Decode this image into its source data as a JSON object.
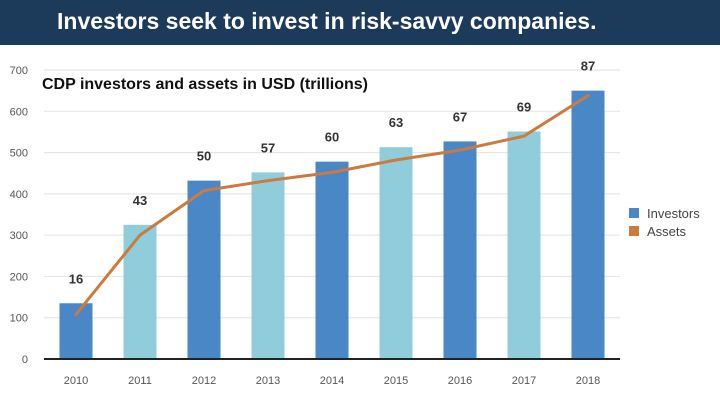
{
  "header": {
    "title": "Investors seek to invest in risk-savvy companies."
  },
  "chart_data": {
    "type": "bar",
    "title": "CDP investors and assets in USD (trillions)",
    "categories": [
      "2010",
      "2011",
      "2012",
      "2013",
      "2014",
      "2015",
      "2016",
      "2017",
      "2018"
    ],
    "yticks": [
      "0",
      "100",
      "200",
      "300",
      "400",
      "500",
      "600",
      "700"
    ],
    "ylim": [
      0,
      700
    ],
    "grid": true,
    "legend_position": "right",
    "series": [
      {
        "name": "Investors",
        "type": "bar",
        "values": [
          135,
          325,
          432,
          452,
          478,
          513,
          527,
          551,
          650
        ],
        "bar_colors": [
          "#4a87c7",
          "#8fcddb",
          "#4a87c7",
          "#8fcddb",
          "#4a87c7",
          "#8fcddb",
          "#4a87c7",
          "#8fcddb",
          "#4a87c7"
        ],
        "legend_color": "#4a87c7"
      },
      {
        "name": "Assets",
        "type": "line",
        "values": [
          16,
          43,
          50,
          57,
          60,
          63,
          67,
          69,
          87
        ],
        "labels": [
          "16",
          "43",
          "50",
          "57",
          "60",
          "63",
          "67",
          "69",
          "87"
        ],
        "plotted_values": [
          108,
          300,
          408,
          432,
          452,
          482,
          506,
          540,
          638
        ],
        "color": "#cc7a3e"
      }
    ]
  }
}
